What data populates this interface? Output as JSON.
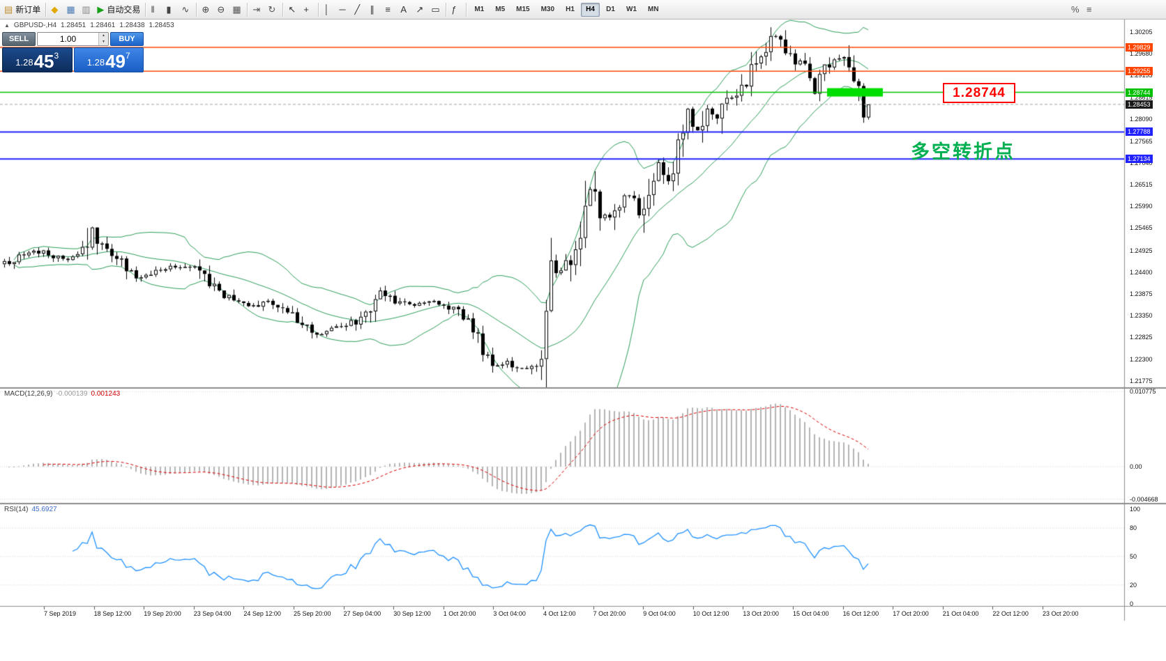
{
  "toolbar": {
    "items": [
      {
        "type": "button",
        "name": "new-order-button",
        "glyph": "▤",
        "glyph_color": "#c08a2d",
        "label": "新订单"
      },
      {
        "type": "sep"
      },
      {
        "type": "button",
        "name": "market-watch-icon-button",
        "glyph": "◆",
        "glyph_color": "#e0a800"
      },
      {
        "type": "button",
        "name": "data-window-icon-button",
        "glyph": "▦",
        "glyph_color": "#4a7ab5"
      },
      {
        "type": "button",
        "name": "navigator-icon-button",
        "glyph": "▥",
        "glyph_color": "#888888"
      },
      {
        "type": "button",
        "name": "auto-trading-button",
        "glyph": "▶",
        "glyph_color": "#18a018",
        "label": "自动交易"
      },
      {
        "type": "sep"
      },
      {
        "type": "button",
        "name": "bar-chart-type-button",
        "glyph": "‖",
        "glyph_color": "#444444"
      },
      {
        "type": "button",
        "name": "candlestick-chart-type-button",
        "glyph": "▮",
        "glyph_color": "#444444"
      },
      {
        "type": "button",
        "name": "line-chart-type-button",
        "glyph": "∿",
        "glyph_color": "#444444"
      },
      {
        "type": "sep"
      },
      {
        "type": "button",
        "name": "zoom-in-button",
        "glyph": "⊕",
        "glyph_color": "#444444"
      },
      {
        "type": "button",
        "name": "zoom-out-button",
        "glyph": "⊖",
        "glyph_color": "#444444"
      },
      {
        "type": "button",
        "name": "tile-windows-button",
        "glyph": "▦",
        "glyph_color": "#555555"
      },
      {
        "type": "sep"
      },
      {
        "type": "button",
        "name": "chart-shift-button",
        "glyph": "⇥",
        "glyph_color": "#555555"
      },
      {
        "type": "button",
        "name": "auto-scroll-button",
        "glyph": "↻",
        "glyph_color": "#555555"
      },
      {
        "type": "sep"
      },
      {
        "type": "button",
        "name": "cursor-button",
        "glyph": "↖",
        "glyph_color": "#333333"
      },
      {
        "type": "button",
        "name": "crosshair-button",
        "glyph": "+",
        "glyph_color": "#333333"
      },
      {
        "type": "sep"
      },
      {
        "type": "button",
        "name": "vertical-line-button",
        "glyph": "│",
        "glyph_color": "#333333"
      },
      {
        "type": "button",
        "name": "horizontal-line-button",
        "glyph": "─",
        "glyph_color": "#333333"
      },
      {
        "type": "button",
        "name": "trendline-button",
        "glyph": "╱",
        "glyph_color": "#333333"
      },
      {
        "type": "button",
        "name": "channel-button",
        "glyph": "∥",
        "glyph_color": "#333333"
      },
      {
        "type": "button",
        "name": "fibonacci-button",
        "glyph": "≡",
        "glyph_color": "#333333"
      },
      {
        "type": "button",
        "name": "text-label-button",
        "glyph": "A",
        "glyph_color": "#333333"
      },
      {
        "type": "button",
        "name": "arrow-object-button",
        "glyph": "↗",
        "glyph_color": "#333333"
      },
      {
        "type": "button",
        "name": "shapes-button",
        "glyph": "▭",
        "glyph_color": "#333333"
      },
      {
        "type": "sep"
      },
      {
        "type": "button",
        "name": "indicators-button",
        "glyph": "ƒ",
        "glyph_color": "#333333"
      },
      {
        "type": "sep"
      }
    ],
    "timeframes": [
      {
        "label": "M1"
      },
      {
        "label": "M5"
      },
      {
        "label": "M15"
      },
      {
        "label": "M30"
      },
      {
        "label": "H1"
      },
      {
        "label": "H4",
        "active": true
      },
      {
        "label": "D1"
      },
      {
        "label": "W1"
      },
      {
        "label": "MN"
      }
    ],
    "right_items": [
      {
        "name": "chart-properties-icon-button",
        "glyph": "%"
      },
      {
        "name": "objects-list-icon-button",
        "glyph": "≡"
      }
    ]
  },
  "chart": {
    "header": {
      "toggle_glyph": "▲",
      "symbol": "GBPUSD-,H4",
      "open": "1.28451",
      "high": "1.28461",
      "low": "1.28438",
      "close": "1.28453"
    },
    "trade_panel": {
      "sell_label": "SELL",
      "buy_label": "BUY",
      "volume": "1.00",
      "sell_price": {
        "int": "1.28",
        "pips": "45",
        "frac": "3"
      },
      "buy_price": {
        "int": "1.28",
        "pips": "49",
        "frac": "7"
      }
    },
    "current_price_tag": {
      "label": "1.28453",
      "bg": "#1a1a1a"
    }
  },
  "macd_panel": {
    "title": "MACD(12,26,9)",
    "main_value": "-0.000139",
    "signal_value": "0.001243",
    "axis_ticks": [
      "0.010775",
      "0.00",
      "-0.004668"
    ],
    "histogram_color": "#b4b4b4",
    "signal_color": "#dd0000"
  },
  "rsi_panel": {
    "title": "RSI(14)",
    "value": "45.6927",
    "axis_ticks": [
      "100",
      "80",
      "50",
      "20",
      "0"
    ],
    "levels": [
      80,
      50,
      20
    ],
    "line_color": "#1e90ff"
  },
  "annotations": {
    "price_box": {
      "text": "1.28744",
      "color": "#ff0000"
    },
    "turning_point": {
      "text": "多空转折点",
      "color": "#00b050"
    }
  },
  "chart_data": {
    "type": "candlestick",
    "symbol": "GBPUSD-",
    "timeframe": "H4",
    "num_candles": 178,
    "last_close": 1.28453,
    "current_ohlc": {
      "open": 1.28451,
      "high": 1.28461,
      "low": 1.28438,
      "close": 1.28453
    },
    "price_axis_range": [
      1.2162,
      1.3052
    ],
    "y_axis_ticks": [
      "1.30205",
      "1.29680",
      "1.29155",
      "1.28615",
      "1.28090",
      "1.27565",
      "1.27040",
      "1.26515",
      "1.25990",
      "1.25465",
      "1.24925",
      "1.24400",
      "1.23875",
      "1.23350",
      "1.22825",
      "1.22300",
      "1.21775"
    ],
    "x_axis_labels": [
      "7 Sep 2019",
      "18 Sep 12:00",
      "19 Sep 20:00",
      "23 Sep 04:00",
      "24 Sep 12:00",
      "25 Sep 20:00",
      "27 Sep 04:00",
      "30 Sep 12:00",
      "1 Oct 20:00",
      "3 Oct 04:00",
      "4 Oct 12:00",
      "7 Oct 20:00",
      "9 Oct 04:00",
      "10 Oct 12:00",
      "13 Oct 20:00",
      "15 Oct 04:00",
      "16 Oct 12:00",
      "17 Oct 20:00",
      "21 Oct 04:00",
      "22 Oct 12:00",
      "23 Oct 20:00"
    ],
    "close_keypoints": [
      [
        0,
        1.2462
      ],
      [
        4,
        1.248
      ],
      [
        8,
        1.2494
      ],
      [
        12,
        1.2468
      ],
      [
        16,
        1.2482
      ],
      [
        18,
        1.2548
      ],
      [
        20,
        1.25
      ],
      [
        23,
        1.2472
      ],
      [
        27,
        1.2428
      ],
      [
        30,
        1.2438
      ],
      [
        33,
        1.2452
      ],
      [
        36,
        1.2455
      ],
      [
        39,
        1.2446
      ],
      [
        43,
        1.2402
      ],
      [
        47,
        1.2372
      ],
      [
        51,
        1.2358
      ],
      [
        54,
        1.2372
      ],
      [
        57,
        1.2352
      ],
      [
        61,
        1.2312
      ],
      [
        64,
        1.2292
      ],
      [
        67,
        1.23
      ],
      [
        71,
        1.2316
      ],
      [
        74,
        1.2338
      ],
      [
        77,
        1.239
      ],
      [
        80,
        1.2372
      ],
      [
        84,
        1.236
      ],
      [
        88,
        1.2368
      ],
      [
        92,
        1.2352
      ],
      [
        95,
        1.2318
      ],
      [
        98,
        1.2258
      ],
      [
        100,
        1.2215
      ],
      [
        103,
        1.2222
      ],
      [
        106,
        1.2205
      ],
      [
        109,
        1.2222
      ],
      [
        110,
        1.2232
      ],
      [
        111,
        1.2295
      ],
      [
        112,
        1.2438
      ],
      [
        114,
        1.2452
      ],
      [
        116,
        1.247
      ],
      [
        118,
        1.256
      ],
      [
        120,
        1.2645
      ],
      [
        122,
        1.2578
      ],
      [
        124,
        1.2568
      ],
      [
        126,
        1.2605
      ],
      [
        128,
        1.2625
      ],
      [
        130,
        1.2585
      ],
      [
        132,
        1.2645
      ],
      [
        134,
        1.2705
      ],
      [
        136,
        1.2668
      ],
      [
        138,
        1.2745
      ],
      [
        140,
        1.283
      ],
      [
        142,
        1.2788
      ],
      [
        144,
        1.284
      ],
      [
        146,
        1.2818
      ],
      [
        148,
        1.2865
      ],
      [
        150,
        1.2862
      ],
      [
        152,
        1.2905
      ],
      [
        154,
        1.2945
      ],
      [
        156,
        1.2985
      ],
      [
        158,
        1.301
      ],
      [
        160,
        1.2975
      ],
      [
        162,
        1.295
      ],
      [
        164,
        1.2948
      ],
      [
        166,
        1.2875
      ],
      [
        168,
        1.2935
      ],
      [
        170,
        1.2955
      ],
      [
        172,
        1.295
      ],
      [
        174,
        1.29
      ],
      [
        176,
        1.2818
      ],
      [
        177,
        1.28453
      ]
    ],
    "horizontal_lines": [
      {
        "price": 1.29829,
        "label": "1.29829",
        "color": "#ff4500",
        "style": "solid"
      },
      {
        "price": 1.29255,
        "label": "1.29255",
        "color": "#ff4500",
        "style": "solid"
      },
      {
        "price": 1.28744,
        "label": "1.28744",
        "color": "#00c000",
        "style": "solid"
      },
      {
        "price": 1.27788,
        "label": "1.27788",
        "color": "#2222ff",
        "style": "solid"
      },
      {
        "price": 1.27134,
        "label": "1.27134",
        "color": "#2222ff",
        "style": "solid"
      }
    ],
    "green_zone": {
      "price": 1.28744,
      "from_candle": 169,
      "to_candle": 180,
      "color": "#00dd00"
    },
    "bollinger": {
      "period": 20,
      "deviation": 2,
      "color": "#2e9e5b"
    },
    "macd": {
      "fast": 12,
      "slow": 26,
      "signal": 9
    },
    "rsi": {
      "period": 14
    }
  }
}
